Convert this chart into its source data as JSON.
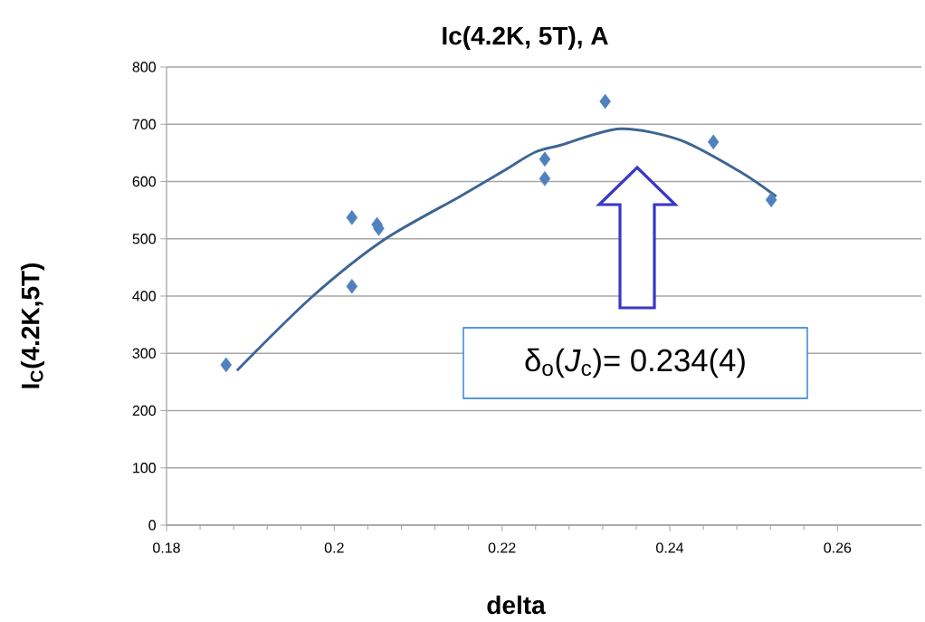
{
  "chart_data": {
    "type": "scatter",
    "title": "Ic(4.2K, 5T), A",
    "xlabel": "delta",
    "ylabel": "I$_{C}$(4.2K,5T)",
    "xlim": [
      0.18,
      0.27
    ],
    "xticks": [
      0.18,
      0.2,
      0.22,
      0.24,
      0.26
    ],
    "ylim": [
      0,
      800
    ],
    "yticks": [
      0,
      100,
      200,
      300,
      400,
      500,
      600,
      700,
      800
    ],
    "grid": "y",
    "series": [
      {
        "color": "#4f81bd",
        "marker": "diamond",
        "x": [
          0.1871,
          0.2021,
          0.2021,
          0.2051,
          0.2053,
          0.2251,
          0.2251,
          0.2323,
          0.2452,
          0.2521
        ],
        "values": [
          280,
          537,
          417,
          525,
          518,
          639,
          605,
          740,
          669,
          568
        ]
      },
      {
        "type": "line",
        "color": "#3d6596",
        "marker": "none",
        "line_style": "solid",
        "x": [
          0.1884,
          0.1973,
          0.2059,
          0.215,
          0.22,
          0.2239,
          0.2271,
          0.2341,
          0.2413,
          0.2484,
          0.2527
        ],
        "values": [
          270,
          398,
          498,
          574,
          617,
          651,
          664,
          692,
          672,
          617,
          574
        ]
      }
    ],
    "annotations": [
      "δ$_{o}$(*J*$_{c}$)= 0.234(4)"
    ]
  }
}
